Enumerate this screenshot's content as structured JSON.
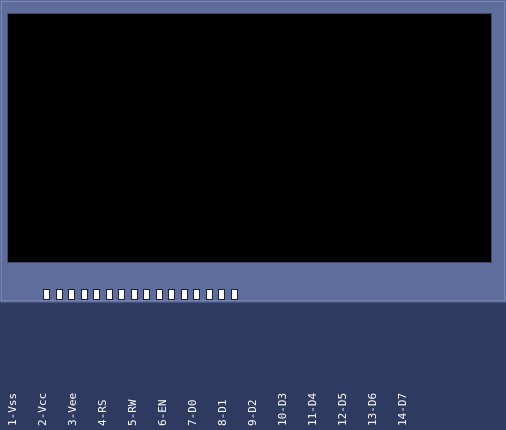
{
  "colors": {
    "background": "#2f3a61",
    "module": "#5e6d9b",
    "screen": "#000000",
    "pin": "#ffffff",
    "label": "#ffffff"
  },
  "pins": [
    {
      "label": "1-Vss"
    },
    {
      "label": "2-Vcc"
    },
    {
      "label": "3-Vee"
    },
    {
      "label": "4-RS"
    },
    {
      "label": "5-RW"
    },
    {
      "label": "6-EN"
    },
    {
      "label": "7-D0"
    },
    {
      "label": "8-D1"
    },
    {
      "label": "9-D2"
    },
    {
      "label": "10-D3"
    },
    {
      "label": "11-D4"
    },
    {
      "label": "12-D5"
    },
    {
      "label": "13-D6"
    },
    {
      "label": "14-D7"
    }
  ]
}
